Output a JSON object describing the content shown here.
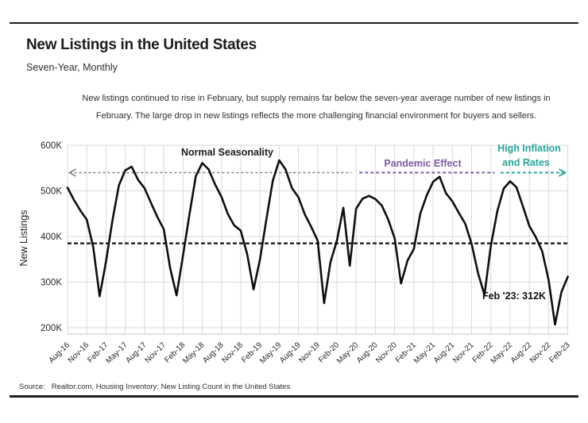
{
  "header": {
    "title": "New Listings in the United States",
    "subtitle": "Seven-Year, Monthly"
  },
  "description": "New listings continued to rise in February, but supply remains far below the seven-year average number of new listings in February. The large drop in new listings reflects the more challenging financial environment for buyers and sellers.",
  "annotations": {
    "normal_seasonality": "Normal Seasonality",
    "pandemic_effect": "Pandemic Effect",
    "high_inflation_line1": "High Inflation",
    "high_inflation_line2": "and Rates",
    "last_point_label": "Feb '23: 312K"
  },
  "colors": {
    "line": "#0f0f0f",
    "average_dash": "#111111",
    "normal_gray": "#808080",
    "pandemic_purple": "#7D5BA6",
    "inflation_teal": "#29A699",
    "gridline": "#d9d9d9",
    "axis_text": "#262626"
  },
  "source": {
    "label": "Source:",
    "text": "Realtor.com, Housing Inventory: New Listing Count in the United States"
  },
  "chart_data": {
    "type": "line",
    "title": "New Listings in the United States",
    "frequency": "monthly",
    "x_start": "Aug-2016",
    "x_end": "Feb-2023",
    "xlabel": "",
    "ylabel": "New Listings",
    "ylim": [
      200,
      600
    ],
    "grid": true,
    "x_tick_labels": [
      "Aug-16",
      "Nov-16",
      "Feb-17",
      "May-17",
      "Aug-17",
      "Nov-17",
      "Feb-18",
      "May-18",
      "Aug-18",
      "Nov-18",
      "Feb-19",
      "May-19",
      "Aug-19",
      "Nov-19",
      "Feb-20",
      "May-20",
      "Aug-20",
      "Nov-20",
      "Feb-21",
      "May-21",
      "Aug-21",
      "Nov-21",
      "Feb-22",
      "May-22",
      "Aug-22",
      "Nov-22",
      "Feb-23"
    ],
    "y_tick_values": [
      600,
      500,
      400,
      300,
      200
    ],
    "y_tick_labels": [
      "600K",
      "500K",
      "400K",
      "300K",
      "200K"
    ],
    "series": [
      {
        "name": "New Listings (thousands)",
        "values": [
          507,
          480,
          457,
          437,
          377,
          269,
          345,
          435,
          512,
          545,
          553,
          524,
          506,
          474,
          443,
          416,
          331,
          271,
          358,
          448,
          532,
          561,
          547,
          514,
          487,
          449,
          424,
          413,
          362,
          284,
          350,
          437,
          522,
          567,
          547,
          506,
          486,
          448,
          421,
          391,
          254,
          344,
          391,
          463,
          336,
          461,
          483,
          489,
          482,
          468,
          437,
          396,
          297,
          347,
          373,
          450,
          490,
          520,
          531,
          495,
          477,
          452,
          428,
          384,
          320,
          272,
          379,
          455,
          505,
          521,
          508,
          466,
          423,
          399,
          368,
          305,
          207,
          278,
          312
        ]
      }
    ],
    "average_line_value": 385,
    "annotation_arrow_level": 540,
    "annotation_segments": [
      {
        "name": "normal-seasonality-line",
        "color": "#808080",
        "from_month": 0.3,
        "to_month": 44.3,
        "arrow": "left",
        "dash": "3,3",
        "width": 1.5
      },
      {
        "name": "pandemic-effect-line",
        "color": "#7D5BA6",
        "from_month": 45.5,
        "to_month": 66.6,
        "arrow": "none",
        "dash": "4,3",
        "width": 2
      },
      {
        "name": "high-inflation-line",
        "color": "#29A699",
        "from_month": 67.5,
        "to_month": 77.6,
        "arrow": "right",
        "dash": "4,3",
        "width": 2
      }
    ],
    "last_point": {
      "label": "Feb '23: 312K",
      "value": 312
    }
  }
}
